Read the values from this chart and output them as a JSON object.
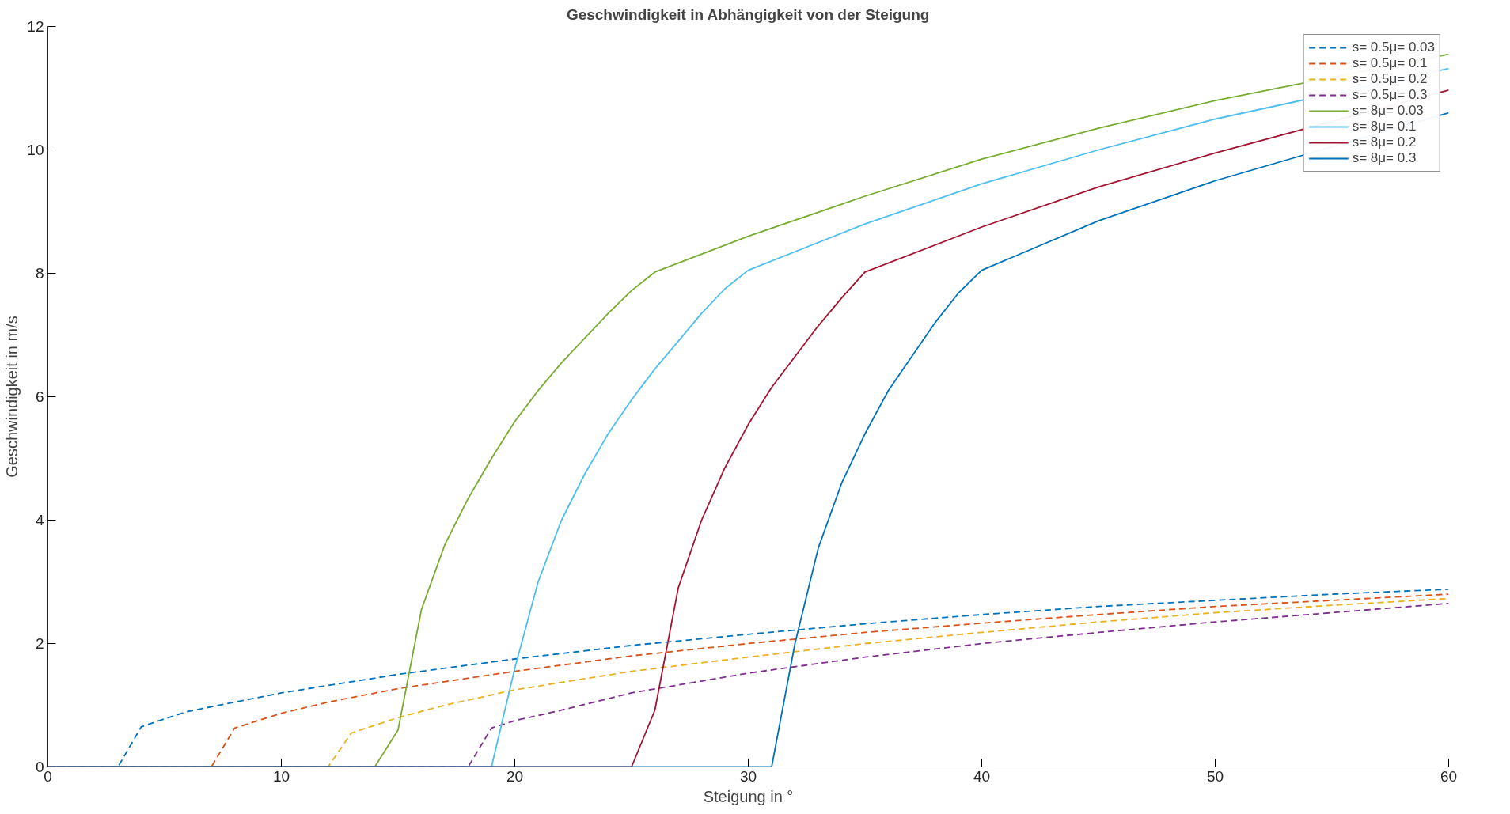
{
  "chart_data": {
    "type": "line",
    "title": "Geschwindigkeit in Abhängigkeit von der Steigung",
    "xlabel": "Steigung in °",
    "ylabel": "Geschwindigkeit in m/s",
    "xlim": [
      0,
      60
    ],
    "ylim": [
      0,
      12
    ],
    "xticks": [
      0,
      10,
      20,
      30,
      40,
      50,
      60
    ],
    "yticks": [
      0,
      2,
      4,
      6,
      8,
      10,
      12
    ],
    "grid": false,
    "legend": "top right",
    "marker": "none",
    "series": [
      {
        "name": "s= 0.5μ= 0.03",
        "color": "#0072bd",
        "line_style": "dashed",
        "x": [
          0,
          3,
          4,
          5,
          6,
          8,
          10,
          15,
          20,
          25,
          30,
          35,
          40,
          45,
          50,
          55,
          60
        ],
        "values": [
          0,
          0,
          0.65,
          0.78,
          0.9,
          1.05,
          1.2,
          1.5,
          1.75,
          1.97,
          2.15,
          2.32,
          2.47,
          2.6,
          2.7,
          2.8,
          2.88
        ]
      },
      {
        "name": "s= 0.5μ= 0.1",
        "color": "#d95319",
        "line_style": "dashed",
        "x": [
          0,
          7,
          8,
          10,
          12,
          15,
          20,
          25,
          30,
          35,
          40,
          45,
          50,
          55,
          60
        ],
        "values": [
          0,
          0,
          0.63,
          0.87,
          1.05,
          1.27,
          1.55,
          1.8,
          2.0,
          2.18,
          2.33,
          2.47,
          2.6,
          2.7,
          2.8
        ]
      },
      {
        "name": "s= 0.5μ= 0.2",
        "color": "#edb120",
        "line_style": "dashed",
        "x": [
          0,
          12,
          13,
          15,
          17,
          20,
          25,
          30,
          35,
          40,
          45,
          50,
          55,
          60
        ],
        "values": [
          0,
          0,
          0.55,
          0.8,
          1.0,
          1.25,
          1.55,
          1.78,
          2.0,
          2.18,
          2.35,
          2.5,
          2.62,
          2.73
        ]
      },
      {
        "name": "s= 0.5μ= 0.3",
        "color": "#7e2f8e",
        "line_style": "dashed",
        "x": [
          0,
          18,
          19,
          20,
          22,
          25,
          30,
          35,
          40,
          45,
          50,
          55,
          60
        ],
        "values": [
          0,
          0,
          0.63,
          0.75,
          0.92,
          1.2,
          1.52,
          1.78,
          2.0,
          2.18,
          2.35,
          2.5,
          2.65
        ]
      },
      {
        "name": "s= 8μ= 0.03",
        "color": "#77ac30",
        "line_style": "solid",
        "x": [
          0,
          14,
          15,
          16,
          17,
          18,
          19,
          20,
          21,
          22,
          23,
          24,
          25,
          26,
          30,
          35,
          40,
          45,
          50,
          60
        ],
        "values": [
          0,
          0,
          0.6,
          2.55,
          3.6,
          4.35,
          5.0,
          5.6,
          6.1,
          6.55,
          6.95,
          7.35,
          7.72,
          8.02,
          8.6,
          9.25,
          9.85,
          10.35,
          10.8,
          11.55
        ]
      },
      {
        "name": "s= 8μ= 0.1",
        "color": "#4dbeee",
        "line_style": "solid",
        "x": [
          0,
          19,
          20,
          21,
          22,
          23,
          24,
          25,
          26,
          27,
          28,
          29,
          30,
          35,
          40,
          45,
          50,
          60
        ],
        "values": [
          0,
          0,
          1.6,
          3.0,
          4.0,
          4.75,
          5.4,
          5.95,
          6.45,
          6.9,
          7.35,
          7.75,
          8.05,
          8.8,
          9.45,
          10.0,
          10.5,
          11.32
        ]
      },
      {
        "name": "s= 8μ= 0.2",
        "color": "#a2142f",
        "line_style": "solid",
        "x": [
          0,
          25,
          26,
          27,
          28,
          29,
          30,
          31,
          32,
          33,
          34,
          35,
          40,
          45,
          50,
          60
        ],
        "values": [
          0,
          0,
          0.92,
          2.9,
          4.0,
          4.85,
          5.55,
          6.15,
          6.65,
          7.15,
          7.6,
          8.02,
          8.75,
          9.4,
          9.95,
          10.97
        ]
      },
      {
        "name": "s= 8μ= 0.3",
        "color": "#0072bd",
        "line_style": "solid",
        "x": [
          0,
          31,
          32,
          33,
          34,
          35,
          36,
          37,
          38,
          39,
          40,
          45,
          50,
          60
        ],
        "values": [
          0,
          0,
          2.0,
          3.55,
          4.6,
          5.4,
          6.1,
          6.65,
          7.2,
          7.68,
          8.05,
          8.85,
          9.5,
          10.6
        ]
      }
    ]
  }
}
